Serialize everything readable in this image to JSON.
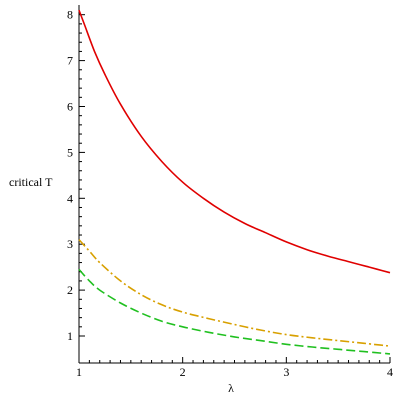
{
  "chart_data": {
    "type": "line",
    "title": "",
    "xlabel": "λ",
    "ylabel": "critical T",
    "xlim": [
      1,
      4
    ],
    "ylim": [
      0.6,
      8.1
    ],
    "grid": false,
    "legend": "none",
    "x_ticks": [
      1,
      2,
      3,
      4
    ],
    "y_ticks": [
      1,
      2,
      3,
      4,
      5,
      6,
      7,
      8
    ],
    "x_tick_labels": [
      "1",
      "2",
      "3",
      "4"
    ],
    "y_tick_labels": [
      "1",
      "2",
      "3",
      "4",
      "5",
      "6",
      "7",
      "8"
    ],
    "series": [
      {
        "color": "#e00000",
        "style": "solid",
        "x": [
          1.0,
          1.05,
          1.15,
          1.25,
          1.4,
          1.6,
          1.8,
          2.0,
          2.2,
          2.4,
          2.6,
          2.8,
          3.0,
          3.2,
          3.4,
          3.6,
          3.8,
          4.0
        ],
        "y": [
          8.1,
          7.8,
          7.2,
          6.7,
          6.05,
          5.35,
          4.8,
          4.35,
          4.0,
          3.7,
          3.45,
          3.25,
          3.05,
          2.88,
          2.74,
          2.62,
          2.5,
          2.38
        ]
      },
      {
        "color": "#d8a000",
        "style": "dashdot",
        "x": [
          1.0,
          1.1,
          1.2,
          1.4,
          1.6,
          1.8,
          2.0,
          2.25,
          2.5,
          2.75,
          3.0,
          3.25,
          3.5,
          3.75,
          4.0
        ],
        "y": [
          3.1,
          2.85,
          2.6,
          2.2,
          1.9,
          1.68,
          1.52,
          1.38,
          1.25,
          1.13,
          1.03,
          0.96,
          0.9,
          0.84,
          0.78
        ]
      },
      {
        "color": "#20c020",
        "style": "dashed",
        "x": [
          1.0,
          1.1,
          1.2,
          1.4,
          1.6,
          1.8,
          2.0,
          2.25,
          2.5,
          2.75,
          3.0,
          3.25,
          3.5,
          3.75,
          4.0
        ],
        "y": [
          2.45,
          2.2,
          2.0,
          1.72,
          1.5,
          1.32,
          1.2,
          1.08,
          0.98,
          0.9,
          0.82,
          0.76,
          0.71,
          0.66,
          0.61
        ]
      }
    ]
  }
}
